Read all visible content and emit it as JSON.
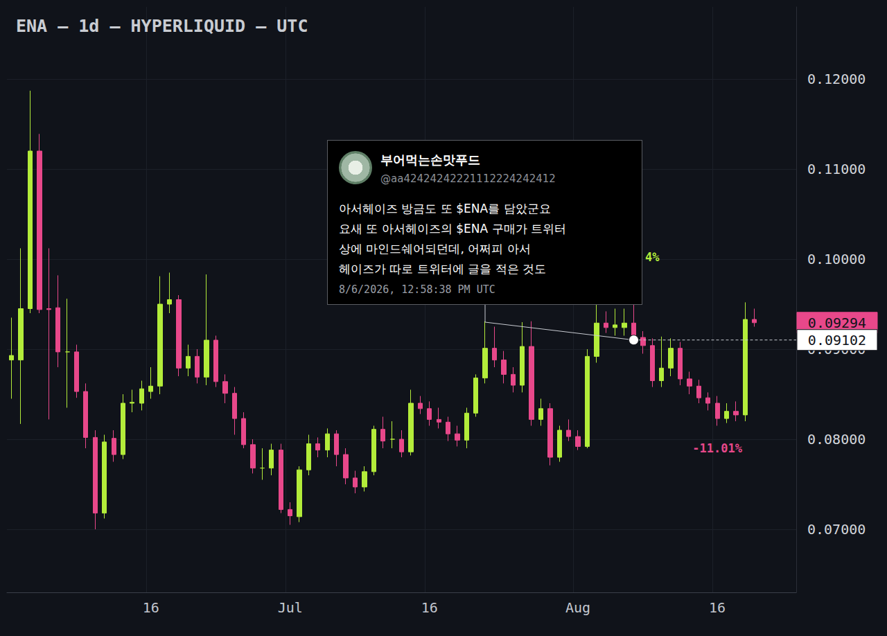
{
  "chart_data": {
    "type": "candlestick",
    "title": "ENA — 1d — HYPERLIQUID — UTC",
    "categories": [
      null,
      null,
      null,
      null,
      null,
      null,
      null,
      null,
      null,
      null,
      null,
      null,
      null,
      null,
      null,
      "16",
      null,
      null,
      null,
      null,
      null,
      null,
      null,
      null,
      null,
      null,
      null,
      null,
      null,
      null,
      "Jul",
      null,
      null,
      null,
      null,
      null,
      null,
      null,
      null,
      null,
      null,
      null,
      null,
      null,
      null,
      "16",
      null,
      null,
      null,
      null,
      null,
      null,
      null,
      null,
      null,
      null,
      null,
      null,
      null,
      null,
      null,
      "Aug",
      null,
      null,
      null,
      null,
      null,
      null,
      null,
      null,
      null,
      null,
      null,
      null,
      null,
      null,
      "16",
      null,
      null,
      null,
      null,
      null,
      null,
      null,
      null
    ],
    "open": [
      0.0888,
      0.0888,
      0.0945,
      0.112,
      0.0945,
      0.0946,
      0.0897,
      0.0897,
      0.0853,
      0.0802,
      0.0718,
      0.0801,
      0.0783,
      0.084,
      0.084,
      0.0853,
      0.0859,
      0.095,
      0.0955,
      0.0879,
      0.0892,
      0.0869,
      0.091,
      0.0864,
      0.0851,
      0.0823,
      0.0794,
      0.0768,
      0.0768,
      0.0788,
      0.0722,
      0.0714,
      0.0766,
      0.0795,
      0.0788,
      0.0806,
      0.0783,
      0.0757,
      0.0747,
      0.0764,
      0.0811,
      0.08,
      0.08,
      0.0786,
      0.084,
      0.0834,
      0.0822,
      0.0819,
      0.0806,
      0.0799,
      0.0829,
      0.0868,
      0.0901,
      0.0888,
      0.0872,
      0.086,
      0.0903,
      0.0822,
      0.0834,
      0.078,
      0.081,
      0.0803,
      0.0792,
      0.0892,
      0.0929,
      0.0924,
      0.0924,
      0.0929,
      0.0913,
      0.0904,
      0.0865,
      0.0879,
      0.0901,
      0.0867,
      0.0859,
      0.0846,
      0.084,
      0.0823,
      0.0831,
      0.0827,
      0.0933,
      null,
      null,
      null,
      null
    ],
    "high": [
      0.0935,
      0.1012,
      0.1187,
      0.1139,
      0.1012,
      0.0982,
      0.0956,
      0.0905,
      0.0862,
      0.081,
      0.0805,
      0.081,
      0.085,
      0.0855,
      0.0865,
      0.088,
      0.0981,
      0.0985,
      0.096,
      0.0905,
      0.09,
      0.0983,
      0.0915,
      0.0872,
      0.0858,
      0.083,
      0.08,
      0.079,
      0.0795,
      0.0795,
      0.073,
      0.077,
      0.0805,
      0.0802,
      0.0812,
      0.081,
      0.079,
      0.0765,
      0.077,
      0.0815,
      0.0825,
      0.082,
      0.081,
      0.0855,
      0.0848,
      0.0842,
      0.0835,
      0.0825,
      0.0815,
      0.0835,
      0.0872,
      0.0931,
      0.0925,
      0.0898,
      0.088,
      0.093,
      0.0931,
      0.0845,
      0.084,
      0.0815,
      0.0822,
      0.081,
      0.09,
      0.095,
      0.0942,
      0.0945,
      0.0945,
      0.0958,
      0.092,
      0.0912,
      0.0914,
      0.0912,
      0.0908,
      0.0875,
      0.0866,
      0.0852,
      0.0848,
      0.084,
      0.0842,
      0.0952,
      0.0945,
      null,
      null,
      null,
      null
    ],
    "low": [
      0.0845,
      0.0817,
      0.094,
      0.094,
      0.0822,
      0.088,
      0.0835,
      0.0846,
      0.079,
      0.07,
      0.0712,
      0.0775,
      0.0778,
      0.083,
      0.0832,
      0.0845,
      0.085,
      0.094,
      0.087,
      0.087,
      0.0862,
      0.086,
      0.0858,
      0.084,
      0.0805,
      0.079,
      0.0762,
      0.0755,
      0.076,
      0.0718,
      0.0705,
      0.0708,
      0.076,
      0.078,
      0.078,
      0.077,
      0.075,
      0.074,
      0.0742,
      0.076,
      0.079,
      0.079,
      0.078,
      0.0782,
      0.0828,
      0.0815,
      0.0812,
      0.0798,
      0.0792,
      0.079,
      0.0825,
      0.0862,
      0.088,
      0.0862,
      0.0852,
      0.0852,
      0.0815,
      0.0815,
      0.0771,
      0.0775,
      0.0798,
      0.0788,
      0.079,
      0.0885,
      0.0918,
      0.0915,
      0.0915,
      0.0905,
      0.0895,
      0.0858,
      0.0858,
      0.087,
      0.086,
      0.085,
      0.084,
      0.0832,
      0.0815,
      0.0818,
      0.082,
      0.082,
      0.0925,
      null,
      null,
      null,
      null
    ],
    "close": [
      0.0893,
      0.0945,
      0.112,
      0.0944,
      0.0944,
      0.0897,
      0.0897,
      0.0853,
      0.0802,
      0.0718,
      0.0797,
      0.0783,
      0.084,
      0.0841,
      0.0856,
      0.0859,
      0.095,
      0.0955,
      0.0879,
      0.0892,
      0.0869,
      0.091,
      0.0864,
      0.0851,
      0.0823,
      0.0794,
      0.0768,
      0.0768,
      0.0788,
      0.0722,
      0.0715,
      0.0766,
      0.0795,
      0.0788,
      0.0806,
      0.0783,
      0.0757,
      0.0747,
      0.0764,
      0.0811,
      0.0798,
      0.08,
      0.0786,
      0.084,
      0.0834,
      0.0822,
      0.0819,
      0.0806,
      0.0799,
      0.0829,
      0.0868,
      0.0901,
      0.0888,
      0.0872,
      0.086,
      0.0903,
      0.0822,
      0.0834,
      0.078,
      0.081,
      0.0803,
      0.0792,
      0.0892,
      0.0929,
      0.0924,
      0.0927,
      0.0929,
      0.0913,
      0.0904,
      0.0865,
      0.0879,
      0.0901,
      0.0867,
      0.0859,
      0.0846,
      0.084,
      0.0823,
      0.0831,
      0.0827,
      0.0933,
      0.09294,
      null,
      null,
      null,
      null
    ],
    "ylim": [
      0.063,
      0.128
    ],
    "yticks": [
      {
        "value": 0.07,
        "label": "0.07000"
      },
      {
        "value": 0.08,
        "label": "0.08000"
      },
      {
        "value": 0.09,
        "label": "0.09000"
      },
      {
        "value": 0.1,
        "label": "0.10000"
      },
      {
        "value": 0.11,
        "label": "0.11000"
      },
      {
        "value": 0.12,
        "label": "0.12000"
      }
    ],
    "grid": true,
    "price_tags": [
      {
        "value": 0.09294,
        "label": "0.09294",
        "color": "#e8488a"
      },
      {
        "value": 0.09102,
        "label": "0.09102",
        "color": "#ffffff"
      }
    ],
    "annotations": [
      {
        "text": "4%",
        "x_index": 69,
        "y": 0.1002,
        "color": "#b5ee3c"
      },
      {
        "text": "-11.01%",
        "x_index": 76,
        "y": 0.079,
        "color": "#e8488a"
      }
    ],
    "tweet": {
      "name": "부어먹는손맛푸드",
      "handle": "@aa42424242221112224242412",
      "lines": [
        "아서헤이즈 방금도 또 $ENA를 담았군요",
        "요새 또 아서헤이즈의 $ENA 구매가 트위터",
        "상에 마인드쉐어되던데, 어쩌피 아서",
        "헤이즈가 따로 트위터에 글을 적은 것도"
      ],
      "time": "8/6/2026, 12:58:38 PM UTC",
      "x_index": 67,
      "price": 0.09102
    }
  }
}
